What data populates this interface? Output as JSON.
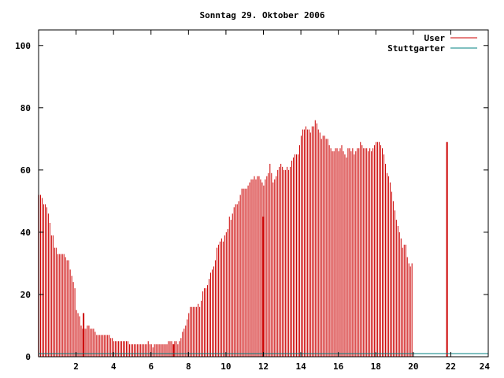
{
  "chart_data": {
    "type": "bar",
    "title": "Sonntag 29. Oktober 2006",
    "xlabel": "",
    "ylabel": "",
    "xlim": [
      0,
      24
    ],
    "ylim": [
      0,
      105
    ],
    "x_ticks": [
      2,
      4,
      6,
      8,
      10,
      12,
      14,
      16,
      18,
      20,
      22,
      24
    ],
    "y_ticks": [
      0,
      20,
      40,
      60,
      80,
      100
    ],
    "grid": false,
    "legend_position": "top-right",
    "sample_step_hours": 0.0833,
    "series": [
      {
        "name": "User",
        "color": "#cc0000",
        "values": [
          52,
          52,
          51,
          49,
          49,
          48,
          46,
          43,
          39,
          39,
          35,
          35,
          33,
          33,
          33,
          33,
          33,
          32,
          31,
          31,
          28,
          26,
          24,
          22,
          15,
          14,
          13,
          10,
          9,
          9,
          9,
          10,
          10,
          9,
          9,
          9,
          8,
          7,
          7,
          7,
          7,
          7,
          7,
          7,
          7,
          7,
          6,
          6,
          5,
          5,
          5,
          5,
          5,
          5,
          5,
          5,
          5,
          5,
          4,
          4,
          4,
          4,
          4,
          4,
          4,
          4,
          4,
          4,
          4,
          4,
          5,
          4,
          4,
          3,
          4,
          4,
          4,
          4,
          4,
          4,
          4,
          4,
          4,
          5,
          5,
          5,
          4,
          5,
          5,
          4,
          5,
          6,
          8,
          9,
          10,
          12,
          14,
          16,
          16,
          16,
          16,
          16,
          17,
          16,
          18,
          21,
          22,
          22,
          23,
          25,
          27,
          28,
          29,
          31,
          35,
          36,
          37,
          38,
          37,
          39,
          40,
          41,
          45,
          44,
          46,
          48,
          49,
          49,
          50,
          52,
          54,
          54,
          54,
          54,
          55,
          56,
          57,
          57,
          58,
          57,
          58,
          58,
          57,
          56,
          55,
          57,
          58,
          59,
          62,
          59,
          56,
          57,
          58,
          60,
          61,
          62,
          61,
          60,
          60,
          61,
          60,
          61,
          63,
          64,
          65,
          65,
          65,
          68,
          71,
          73,
          73,
          74,
          73,
          73,
          72,
          74,
          74,
          76,
          75,
          73,
          72,
          70,
          71,
          71,
          70,
          70,
          68,
          67,
          66,
          66,
          67,
          67,
          66,
          67,
          68,
          66,
          65,
          64,
          67,
          67,
          66,
          67,
          65,
          66,
          67,
          67,
          69,
          68,
          67,
          67,
          67,
          66,
          67,
          66,
          67,
          68,
          69,
          69,
          69,
          68,
          67,
          65,
          62,
          59,
          58,
          56,
          53,
          50,
          47,
          44,
          42,
          40,
          38,
          35,
          36,
          36,
          32,
          30,
          29,
          30
        ],
        "spikes": [
          {
            "x": 2.4,
            "value": 14
          },
          {
            "x": 7.2,
            "value": 4
          },
          {
            "x": 12.0,
            "value": 45
          },
          {
            "x": 21.8,
            "value": 69
          }
        ]
      },
      {
        "name": "Stuttgarter",
        "color": "#008080",
        "values": [
          1
        ]
      }
    ]
  }
}
